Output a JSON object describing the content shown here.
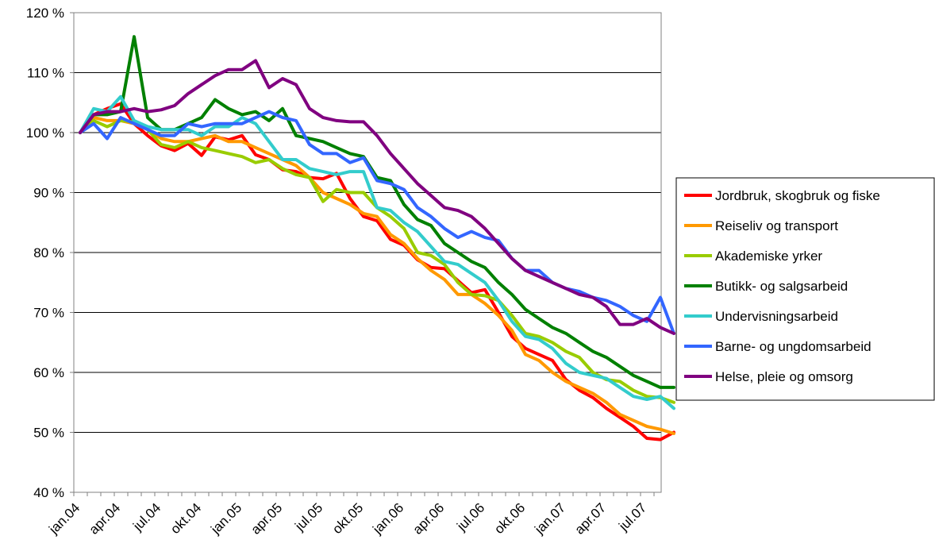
{
  "chart_data": {
    "type": "line",
    "title": "",
    "xlabel": "",
    "ylabel": "",
    "ylim": [
      40,
      120
    ],
    "y_step": 10,
    "y_tick_suffix": " %",
    "grid": "horizontal",
    "legend_position": "right",
    "x_tick_labels": [
      "jan.04",
      "apr.04",
      "jul.04",
      "okt.04",
      "jan.05",
      "apr.05",
      "jul.05",
      "okt.05",
      "jan.06",
      "apr.06",
      "jul.06",
      "okt.06",
      "jan.07",
      "apr.07",
      "jul.07"
    ],
    "x_periods": [
      "2004-01",
      "2004-02",
      "2004-03",
      "2004-04",
      "2004-05",
      "2004-06",
      "2004-07",
      "2004-08",
      "2004-09",
      "2004-10",
      "2004-11",
      "2004-12",
      "2005-01",
      "2005-02",
      "2005-03",
      "2005-04",
      "2005-05",
      "2005-06",
      "2005-07",
      "2005-08",
      "2005-09",
      "2005-10",
      "2005-11",
      "2005-12",
      "2006-01",
      "2006-02",
      "2006-03",
      "2006-04",
      "2006-05",
      "2006-06",
      "2006-07",
      "2006-08",
      "2006-09",
      "2006-10",
      "2006-11",
      "2006-12",
      "2007-01",
      "2007-02",
      "2007-03",
      "2007-04",
      "2007-05",
      "2007-06",
      "2007-07",
      "2007-08",
      "2007-09"
    ],
    "series": [
      {
        "name": "Jordbruk, skogbruk og fiske",
        "color": "#ff0000",
        "values": [
          100,
          103.0,
          104.0,
          104.8,
          101.5,
          99.5,
          97.8,
          97.0,
          98.2,
          96.2,
          99.3,
          98.8,
          99.5,
          96.3,
          95.5,
          93.8,
          93.5,
          92.5,
          92.3,
          93.2,
          89.0,
          86.0,
          85.3,
          82.2,
          81.2,
          78.8,
          77.5,
          77.3,
          75.3,
          73.3,
          73.8,
          70.0,
          66.0,
          64.0,
          63.0,
          62.0,
          58.8,
          57.0,
          55.8,
          54.0,
          52.5,
          51.0,
          49.0,
          48.8,
          50.0
        ]
      },
      {
        "name": "Reiseliv og transport",
        "color": "#ff9900",
        "values": [
          100,
          102.5,
          102.0,
          102.0,
          101.5,
          100.5,
          99.0,
          98.5,
          98.5,
          99.0,
          99.5,
          98.5,
          98.5,
          97.5,
          96.5,
          95.5,
          94.5,
          92.5,
          90.0,
          89.0,
          88.0,
          86.5,
          86.0,
          83.0,
          81.5,
          79.0,
          77.0,
          75.5,
          73.0,
          73.0,
          71.5,
          69.5,
          67.0,
          63.0,
          62.0,
          60.0,
          58.5,
          57.5,
          56.5,
          55.0,
          53.0,
          52.0,
          51.0,
          50.5,
          49.8
        ]
      },
      {
        "name": "Akademiske yrker",
        "color": "#99cc00",
        "values": [
          100,
          102.0,
          101.0,
          102.0,
          101.8,
          100.5,
          98.0,
          97.5,
          98.5,
          97.5,
          97.0,
          96.5,
          96.0,
          95.0,
          95.5,
          94.0,
          93.0,
          92.5,
          88.5,
          90.5,
          90.0,
          90.0,
          87.5,
          86.0,
          84.0,
          80.0,
          79.5,
          78.0,
          75.0,
          73.0,
          72.8,
          72.0,
          69.5,
          66.5,
          66.0,
          65.0,
          63.5,
          62.5,
          60.0,
          58.8,
          58.5,
          57.0,
          56.0,
          55.8,
          55.0
        ]
      },
      {
        "name": "Butikk- og salgsarbeid",
        "color": "#008000",
        "values": [
          100,
          103.0,
          103.0,
          103.5,
          116.0,
          102.5,
          100.5,
          100.5,
          101.5,
          102.5,
          105.5,
          104.0,
          103.0,
          103.5,
          102.0,
          104.0,
          99.5,
          99.0,
          98.5,
          97.5,
          96.5,
          96.0,
          92.5,
          92.0,
          88.0,
          85.5,
          84.5,
          81.5,
          80.0,
          78.5,
          77.5,
          75.0,
          73.0,
          70.5,
          69.0,
          67.5,
          66.5,
          65.0,
          63.5,
          62.5,
          61.0,
          59.5,
          58.5,
          57.5,
          57.5
        ]
      },
      {
        "name": "Undervisningsarbeid",
        "color": "#33cccc",
        "values": [
          100,
          104.0,
          103.5,
          106.0,
          102.0,
          101.0,
          100.5,
          100.5,
          100.5,
          99.5,
          101.0,
          101.0,
          102.5,
          101.5,
          98.5,
          95.5,
          95.5,
          94.0,
          93.5,
          93.0,
          93.5,
          93.5,
          87.5,
          87.0,
          85.0,
          83.5,
          81.0,
          78.5,
          78.0,
          76.5,
          75.0,
          72.0,
          68.5,
          66.0,
          65.5,
          64.0,
          61.5,
          60.0,
          59.5,
          59.0,
          57.5,
          56.0,
          55.5,
          56.0,
          54.0
        ]
      },
      {
        "name": "Barne- og ungdomsarbeid",
        "color": "#3366ff",
        "values": [
          100,
          101.5,
          99.0,
          102.5,
          101.5,
          100.5,
          99.5,
          99.5,
          101.5,
          101.0,
          101.5,
          101.5,
          101.5,
          102.5,
          103.5,
          102.5,
          102.0,
          98.0,
          96.5,
          96.5,
          95.0,
          95.8,
          92.0,
          91.5,
          90.5,
          87.5,
          86.0,
          84.0,
          82.5,
          83.5,
          82.5,
          82.0,
          79.0,
          77.0,
          77.0,
          75.0,
          74.0,
          73.5,
          72.5,
          72.0,
          71.0,
          69.5,
          68.5,
          72.5,
          66.5
        ]
      },
      {
        "name": "Helse, pleie og omsorg",
        "color": "#800080",
        "values": [
          100,
          103.0,
          103.5,
          103.5,
          104.0,
          103.5,
          103.8,
          104.5,
          106.5,
          108.0,
          109.5,
          110.5,
          110.5,
          112.0,
          107.5,
          109.0,
          108.0,
          104.0,
          102.5,
          102.0,
          101.8,
          101.8,
          99.5,
          96.5,
          94.0,
          91.5,
          89.5,
          87.5,
          87.0,
          86.0,
          84.0,
          81.5,
          79.0,
          77.0,
          76.0,
          75.0,
          74.0,
          73.0,
          72.5,
          71.0,
          68.0,
          68.0,
          69.0,
          67.5,
          66.5
        ]
      }
    ]
  }
}
